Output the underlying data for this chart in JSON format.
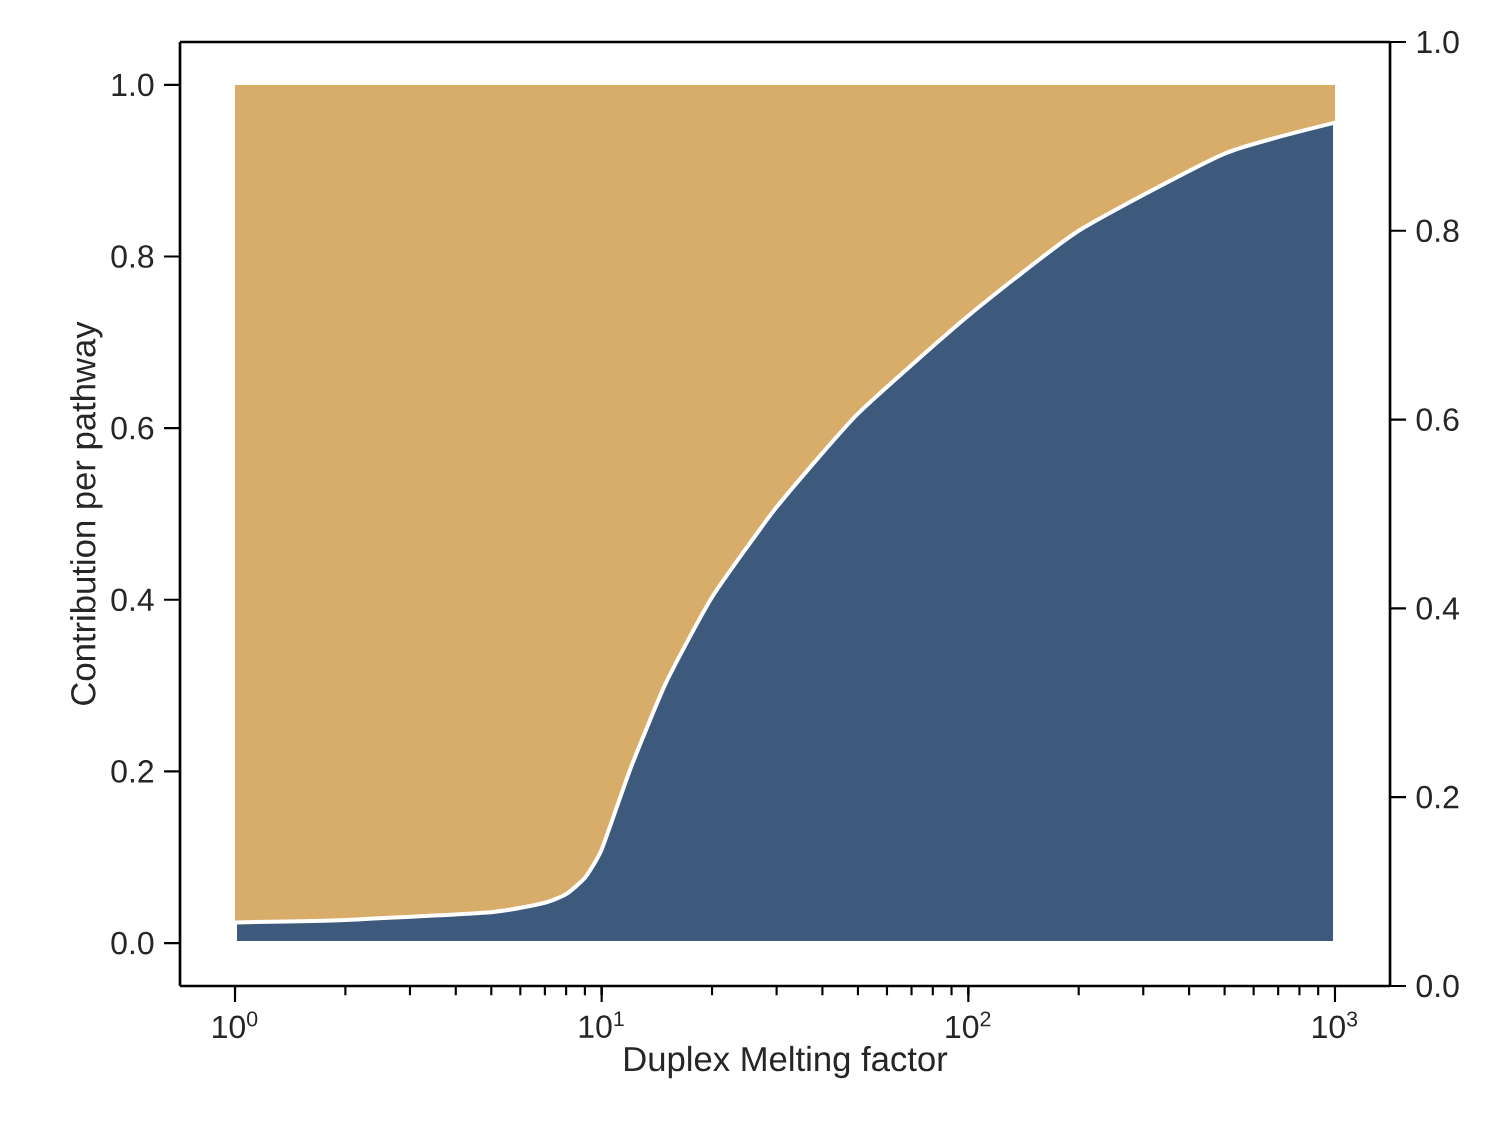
{
  "chart_data": {
    "type": "area",
    "stacked": true,
    "log": "x",
    "xlabel": "Duplex Melting factor",
    "ylabel": "Contribution per pathway",
    "x": [
      1,
      2,
      5,
      7,
      8,
      9,
      10,
      12,
      15,
      20,
      30,
      50,
      100,
      200,
      500,
      1000
    ],
    "series": [
      {
        "color": "#3d5a7d",
        "values": [
          0.024,
          0.027,
          0.036,
          0.047,
          0.057,
          0.076,
          0.109,
          0.204,
          0.304,
          0.403,
          0.508,
          0.617,
          0.731,
          0.83,
          0.92,
          0.956
        ]
      },
      {
        "color": "#d8ac69",
        "values": [
          0.976,
          0.973,
          0.964,
          0.953,
          0.943,
          0.924,
          0.891,
          0.796,
          0.696,
          0.597,
          0.492,
          0.383,
          0.269,
          0.17,
          0.08,
          0.044
        ]
      }
    ],
    "xlim": [
      0.708,
      1413
    ],
    "xticks": [
      {
        "value": 1,
        "label": "10$^{0}$"
      },
      {
        "value": 10,
        "label": "10$^{1}$"
      },
      {
        "value": 100,
        "label": "10$^{2}$"
      },
      {
        "value": 1000,
        "label": "10$^{3}$"
      }
    ],
    "ylim": [
      -0.05,
      1.05
    ],
    "yticks": [
      {
        "value": 0,
        "label": "0.0"
      },
      {
        "value": 0.2,
        "label": "0.2"
      },
      {
        "value": 0.4,
        "label": "0.4"
      },
      {
        "value": 0.6,
        "label": "0.6"
      },
      {
        "value": 0.8,
        "label": "0.8"
      },
      {
        "value": 1,
        "label": "1.0"
      }
    ],
    "y2lim": [
      0,
      1
    ],
    "y2ticks": [
      {
        "value": 0,
        "label": "0.0"
      },
      {
        "value": 0.2,
        "label": "0.2"
      },
      {
        "value": 0.4,
        "label": "0.4"
      },
      {
        "value": 0.6,
        "label": "0.6"
      },
      {
        "value": 0.8,
        "label": "0.8"
      },
      {
        "value": 1,
        "label": "1.0"
      }
    ],
    "grid": false,
    "legend": false
  }
}
